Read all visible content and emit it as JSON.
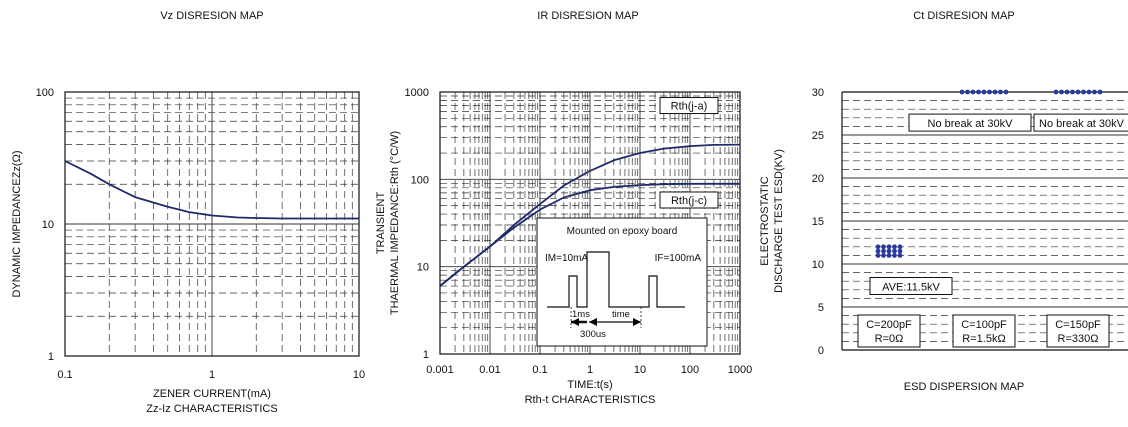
{
  "colors": {
    "curve": "#1f2a6b",
    "dots": "#2b3a9a",
    "grid": "#333333",
    "frame": "#111111"
  },
  "titles": {
    "vz": "Vz DISRESION MAP",
    "ir": "IR DISRESION MAP",
    "ct": "Ct DISRESION MAP"
  },
  "chart_data": [
    {
      "type": "line",
      "x_scale": "log",
      "y_scale": "log",
      "xlim": [
        0.1,
        10
      ],
      "ylim": [
        1,
        100
      ],
      "xticks": [
        "0.1",
        "1",
        "10"
      ],
      "yticks": [
        "1",
        "10",
        "100"
      ],
      "xlabel": "ZENER CURRENT(mA)",
      "ylabel": "DYNAMIC IMPEDANCEZz(Ω)",
      "caption": "Zz-Iz CHARACTERISTICS",
      "series": [
        {
          "x": [
            0.1,
            0.15,
            0.2,
            0.3,
            0.5,
            0.7,
            1,
            1.5,
            2,
            3,
            5,
            10
          ],
          "y": [
            30,
            24,
            20,
            16,
            13.5,
            12.3,
            11.6,
            11.2,
            11.1,
            11,
            11,
            11
          ]
        }
      ]
    },
    {
      "type": "line",
      "x_scale": "log",
      "y_scale": "log",
      "xlim": [
        0.001,
        1000
      ],
      "ylim": [
        1,
        1000
      ],
      "xticks": [
        "0.001",
        "0.01",
        "0.1",
        "1",
        "10",
        "100",
        "1000"
      ],
      "yticks": [
        "1",
        "10",
        "100",
        "1000"
      ],
      "xlabel": "TIME:t(s)",
      "ylabel_line1": "TRANSIENT",
      "ylabel_line2": "THAERMAL IMPEDANCE:Rth (°C/W)",
      "caption": "Rth-t CHARACTERISTICS",
      "series": [
        {
          "name": "Rth(j-a)",
          "x": [
            0.001,
            0.003,
            0.01,
            0.03,
            0.1,
            0.3,
            1,
            3,
            10,
            30,
            100,
            300,
            1000
          ],
          "y": [
            6,
            10,
            17,
            30,
            52,
            85,
            125,
            165,
            200,
            225,
            240,
            248,
            250
          ]
        },
        {
          "name": "Rth(j-c)",
          "x": [
            0.001,
            0.003,
            0.01,
            0.03,
            0.1,
            0.3,
            1,
            3,
            10,
            30,
            100,
            300,
            1000
          ],
          "y": [
            6,
            10,
            17,
            28,
            45,
            62,
            75,
            82,
            86,
            88,
            89,
            89,
            89
          ]
        }
      ],
      "inset": {
        "title": "Mounted on epoxy board",
        "im": "IM=10mA",
        "if": "IF=100mA",
        "t1": "1ms",
        "t2": "time",
        "t3": "300us"
      }
    },
    {
      "type": "scatter",
      "ylim": [
        0,
        30
      ],
      "yticks": [
        "0",
        "5",
        "10",
        "15",
        "20",
        "25",
        "30"
      ],
      "ylabel_line1": "ELECTROSTATIC",
      "ylabel_line2": "DISCHARGE TEST ESD(KV)",
      "caption": "ESD DISPERSION MAP",
      "categories": [
        "C=200pF R=0Ω",
        "C=100pF R=1.5kΩ",
        "C=150pF R=330Ω"
      ],
      "box_labels": [
        {
          "c": "C=200pF",
          "r": "R=0Ω"
        },
        {
          "c": "C=100pF",
          "r": "R=1.5kΩ"
        },
        {
          "c": "C=150pF",
          "r": "R=330Ω"
        }
      ],
      "values": [
        [
          11,
          11.5,
          12
        ],
        [
          30
        ],
        [
          30
        ]
      ],
      "annotations": [
        "AVE:11.5kV",
        "No break at 30kV",
        "No break at 30kV"
      ]
    }
  ]
}
